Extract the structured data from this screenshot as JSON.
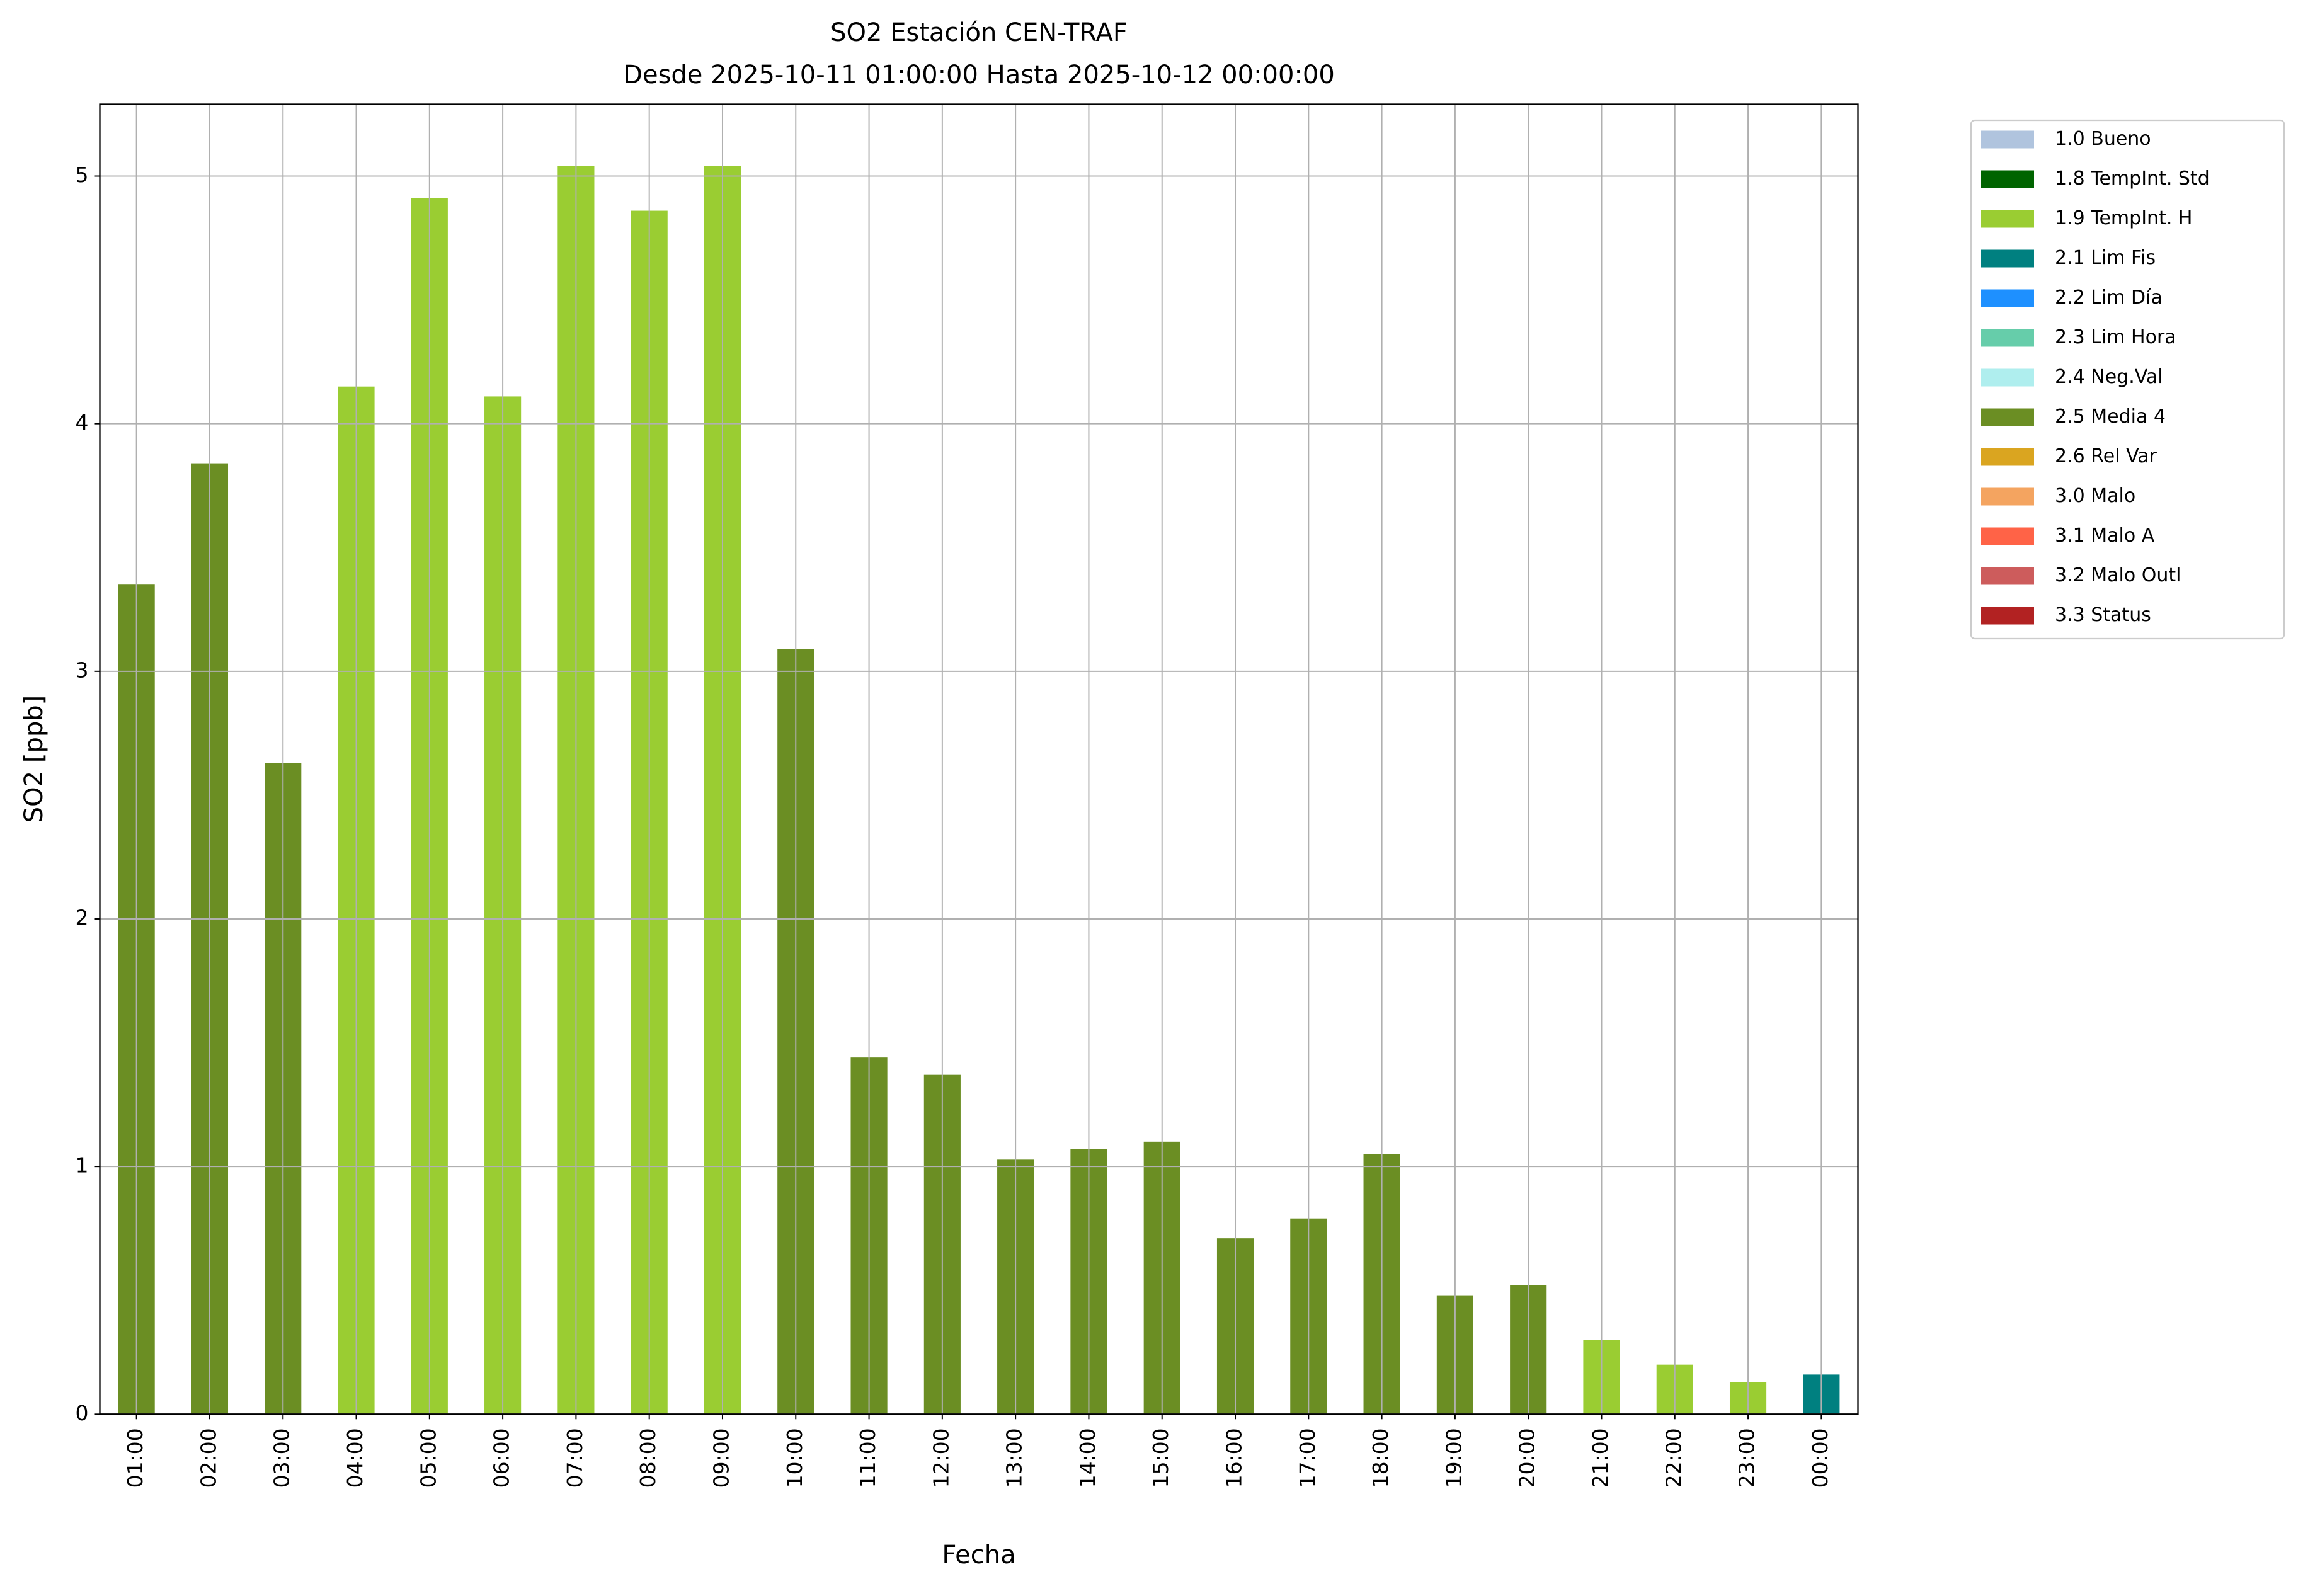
{
  "chart_data": {
    "type": "bar",
    "stacked": true,
    "title": "SO2 Estación CEN-TRAF",
    "subtitle": "Desde 2025-10-11 01:00:00 Hasta 2025-10-12 00:00:00",
    "x_label": "Fecha",
    "y_label": "SO2 [ppb]",
    "categories": [
      "01:00",
      "02:00",
      "03:00",
      "04:00",
      "05:00",
      "06:00",
      "07:00",
      "08:00",
      "09:00",
      "10:00",
      "11:00",
      "12:00",
      "13:00",
      "14:00",
      "15:00",
      "16:00",
      "17:00",
      "18:00",
      "19:00",
      "20:00",
      "21:00",
      "22:00",
      "23:00",
      "00:00"
    ],
    "series": [
      {
        "name": "1.0 Bueno",
        "color": "#b0c4de",
        "values": [
          null,
          null,
          null,
          null,
          null,
          null,
          null,
          null,
          null,
          null,
          null,
          null,
          null,
          null,
          null,
          null,
          null,
          null,
          null,
          null,
          null,
          null,
          null,
          null
        ]
      },
      {
        "name": "1.8 TempInt. Std",
        "color": "#006400",
        "values": [
          null,
          null,
          null,
          null,
          null,
          null,
          null,
          null,
          null,
          null,
          null,
          null,
          null,
          null,
          null,
          null,
          null,
          null,
          null,
          null,
          null,
          null,
          null,
          null
        ]
      },
      {
        "name": "1.9 TempInt. H",
        "color": "#9acd32",
        "values": [
          null,
          null,
          null,
          4.15,
          4.91,
          4.11,
          5.04,
          4.86,
          5.04,
          null,
          null,
          null,
          null,
          null,
          null,
          null,
          null,
          null,
          null,
          null,
          0.3,
          0.2,
          0.13,
          null
        ]
      },
      {
        "name": "2.1 Lim Fis",
        "color": "#008080",
        "values": [
          null,
          null,
          null,
          null,
          null,
          null,
          null,
          null,
          null,
          null,
          null,
          null,
          null,
          null,
          null,
          null,
          null,
          null,
          null,
          null,
          null,
          null,
          null,
          0.16
        ]
      },
      {
        "name": "2.2 Lim Día",
        "color": "#1e90ff",
        "values": [
          null,
          null,
          null,
          null,
          null,
          null,
          null,
          null,
          null,
          null,
          null,
          null,
          null,
          null,
          null,
          null,
          null,
          null,
          null,
          null,
          null,
          null,
          null,
          null
        ]
      },
      {
        "name": "2.3 Lim Hora",
        "color": "#66cdaa",
        "values": [
          null,
          null,
          null,
          null,
          null,
          null,
          null,
          null,
          null,
          null,
          null,
          null,
          null,
          null,
          null,
          null,
          null,
          null,
          null,
          null,
          null,
          null,
          null,
          null
        ]
      },
      {
        "name": "2.4 Neg.Val",
        "color": "#afeeee",
        "values": [
          null,
          null,
          null,
          null,
          null,
          null,
          null,
          null,
          null,
          null,
          null,
          null,
          null,
          null,
          null,
          null,
          null,
          null,
          null,
          null,
          null,
          null,
          null,
          null
        ]
      },
      {
        "name": "2.5 Media 4",
        "color": "#6b8e23",
        "values": [
          3.35,
          3.84,
          2.63,
          null,
          null,
          null,
          null,
          null,
          null,
          3.09,
          1.44,
          1.37,
          1.03,
          1.07,
          1.1,
          0.71,
          0.79,
          1.05,
          0.48,
          0.52,
          null,
          null,
          null,
          null
        ]
      },
      {
        "name": "2.6 Rel Var",
        "color": "#daa520",
        "values": [
          null,
          null,
          null,
          null,
          null,
          null,
          null,
          null,
          null,
          null,
          null,
          null,
          null,
          null,
          null,
          null,
          null,
          null,
          null,
          null,
          null,
          null,
          null,
          null
        ]
      },
      {
        "name": "3.0 Malo",
        "color": "#f4a460",
        "values": [
          null,
          null,
          null,
          null,
          null,
          null,
          null,
          null,
          null,
          null,
          null,
          null,
          null,
          null,
          null,
          null,
          null,
          null,
          null,
          null,
          null,
          null,
          null,
          null
        ]
      },
      {
        "name": "3.1 Malo A",
        "color": "#ff6347",
        "values": [
          null,
          null,
          null,
          null,
          null,
          null,
          null,
          null,
          null,
          null,
          null,
          null,
          null,
          null,
          null,
          null,
          null,
          null,
          null,
          null,
          null,
          null,
          null,
          null
        ]
      },
      {
        "name": "3.2 Malo Outl",
        "color": "#cd5c5c",
        "values": [
          null,
          null,
          null,
          null,
          null,
          null,
          null,
          null,
          null,
          null,
          null,
          null,
          null,
          null,
          null,
          null,
          null,
          null,
          null,
          null,
          null,
          null,
          null,
          null
        ]
      },
      {
        "name": "3.3 Status",
        "color": "#b22222",
        "values": [
          null,
          null,
          null,
          null,
          null,
          null,
          null,
          null,
          null,
          null,
          null,
          null,
          null,
          null,
          null,
          null,
          null,
          null,
          null,
          null,
          null,
          null,
          null,
          null
        ]
      }
    ],
    "ylim": [
      0,
      5.29
    ],
    "yticks": [
      0,
      1,
      2,
      3,
      4,
      5
    ],
    "grid": true,
    "legend": "outside-right"
  }
}
